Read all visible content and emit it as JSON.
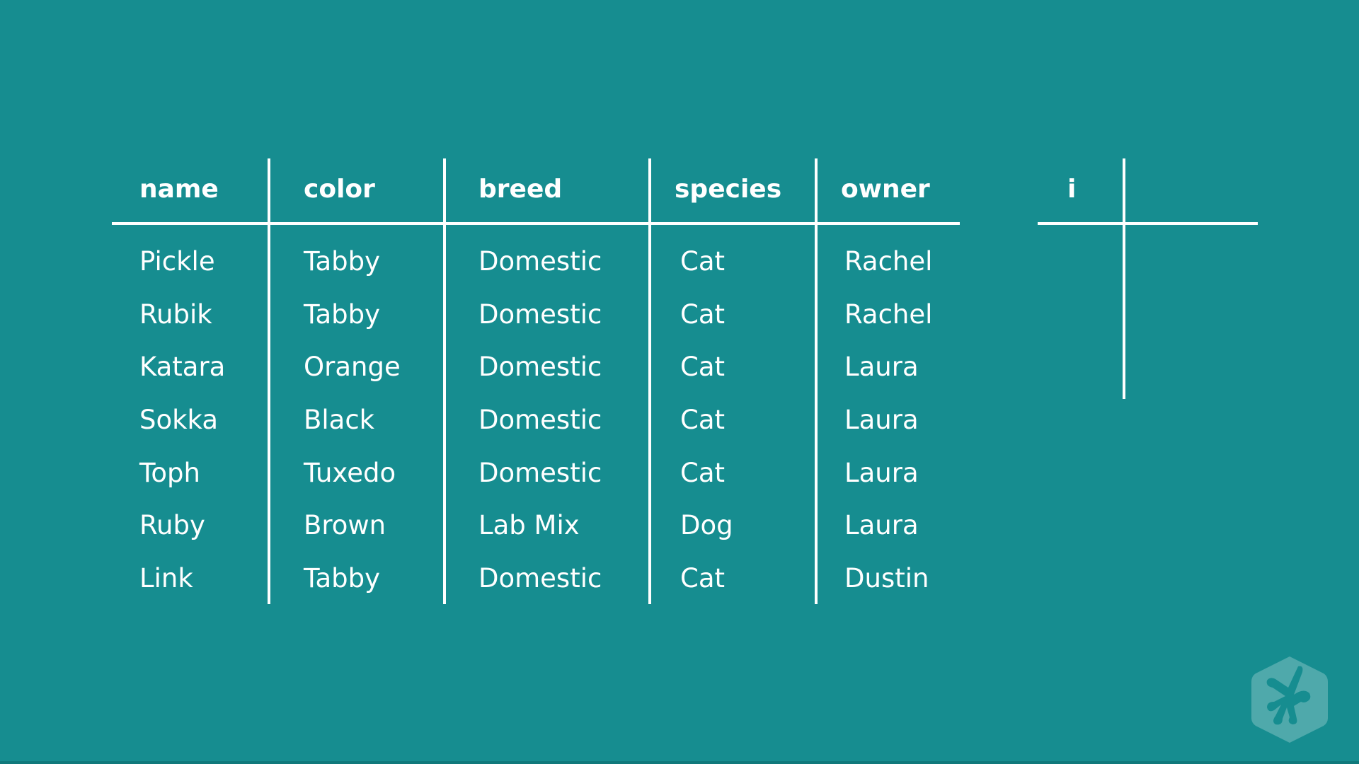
{
  "table": {
    "columns": [
      "name",
      "color",
      "breed",
      "species",
      "owner"
    ],
    "rows": [
      [
        "Pickle",
        "Tabby",
        "Domestic",
        "Cat",
        "Rachel"
      ],
      [
        "Rubik",
        "Tabby",
        "Domestic",
        "Cat",
        "Rachel"
      ],
      [
        "Katara",
        "Orange",
        "Domestic",
        "Cat",
        "Laura"
      ],
      [
        "Sokka",
        "Black",
        "Domestic",
        "Cat",
        "Laura"
      ],
      [
        "Toph",
        "Tuxedo",
        "Domestic",
        "Cat",
        "Laura"
      ],
      [
        "Ruby",
        "Brown",
        "Lab Mix",
        "Dog",
        "Laura"
      ],
      [
        "Link",
        "Tabby",
        "Domestic",
        "Cat",
        "Dustin"
      ]
    ]
  },
  "index_table": {
    "header": "i"
  },
  "colors": {
    "background": "#168d90",
    "lines": "#ffffff",
    "logo": "#4fa9ab"
  },
  "logo": {
    "icon": "treehouse-frog-hexagon-icon"
  }
}
